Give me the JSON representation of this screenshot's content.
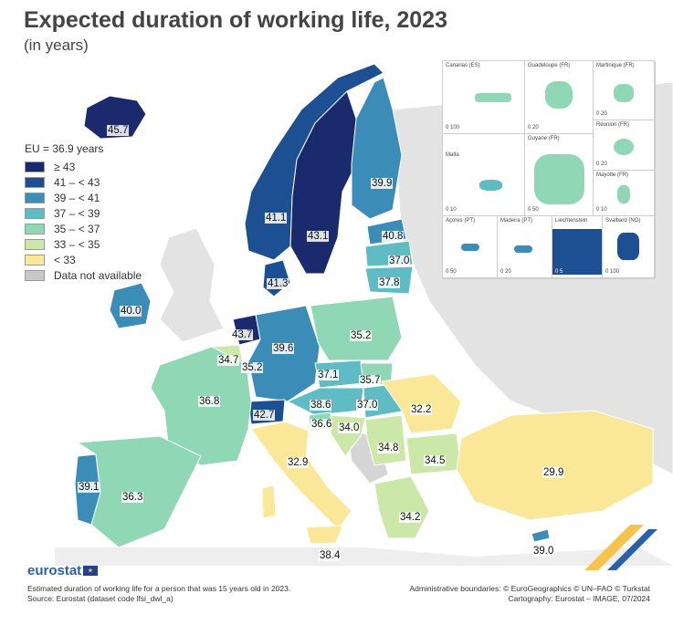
{
  "header": {
    "title": "Expected duration of working life, 2023",
    "subtitle": "(in years)"
  },
  "legend": {
    "eu_label": "EU = 36.9 years",
    "classes": [
      {
        "label": "≥ 43",
        "color": "#1a2a6c"
      },
      {
        "label": "41 – < 43",
        "color": "#1d4f93"
      },
      {
        "label": "39 – < 41",
        "color": "#3b8db7"
      },
      {
        "label": "37 – < 39",
        "color": "#5fbcc5"
      },
      {
        "label": "35 – < 37",
        "color": "#90d7b6"
      },
      {
        "label": "33 – < 35",
        "color": "#cbe8a9"
      },
      {
        "label": "< 33",
        "color": "#fbe798"
      },
      {
        "label": "Data not available",
        "color": "#c8c8c8"
      }
    ]
  },
  "values": {
    "iceland": "45.7",
    "norway": "41.1",
    "sweden": "43.1",
    "finland": "39.9",
    "estonia": "40.8",
    "latvia": "37.0",
    "lithuania": "37.8",
    "denmark": "41.3",
    "ireland": "40.0",
    "netherlands": "43.7",
    "belgium": "34.7",
    "luxembourg": "35.2",
    "germany": "39.6",
    "poland": "35.2",
    "czechia": "37.1",
    "slovakia": "35.7",
    "austria": "38.6",
    "hungary": "37.0",
    "slovenia": "36.6",
    "croatia": "34.0",
    "romania": "32.2",
    "switzerland": "42.7",
    "france": "36.8",
    "italy": "32.9",
    "serbia": "34.8",
    "bulgaria": "34.5",
    "portugal": "39.1",
    "spain": "36.3",
    "greece": "34.2",
    "turkiye": "29.9",
    "malta": "38.4",
    "cyprus": "39.0"
  },
  "insets": {
    "canarias": {
      "label": "Canarias (ES)",
      "scale": "0    100"
    },
    "guadeloupe": {
      "label": "Guadeloupe (FR)",
      "scale": "0   20"
    },
    "martinique": {
      "label": "Martinique (FR)",
      "scale": "0   20"
    },
    "reunion": {
      "label": "Réunion (FR)",
      "scale": "0   20"
    },
    "guyane": {
      "label": "Guyane (FR)",
      "scale": "0   50"
    },
    "malta": {
      "label": "Malta",
      "scale": "0   10"
    },
    "mayotte": {
      "label": "Mayotte (FR)",
      "scale": "0   10"
    },
    "acores": {
      "label": "Açores (PT)",
      "scale": "0   50"
    },
    "madeira": {
      "label": "Madeira (PT)",
      "scale": "0   20"
    },
    "liechtenstein": {
      "label": "Liechtenstein",
      "scale": "0   5"
    },
    "svalbard": {
      "label": "Svalbard (NO)",
      "scale": "0  100"
    }
  },
  "footer": {
    "brand": "eurostat",
    "note": "Estimated duration of working life for a person that was 15 years old in 2023.",
    "source": "Source: Eurostat (dataset code lfsi_dwl_a)",
    "boundaries": "Administrative boundaries: © EuroGeographics © UN–FAO © Turkstat",
    "cartography": "Cartography: Eurostat – IMAGE, 07/2024"
  }
}
